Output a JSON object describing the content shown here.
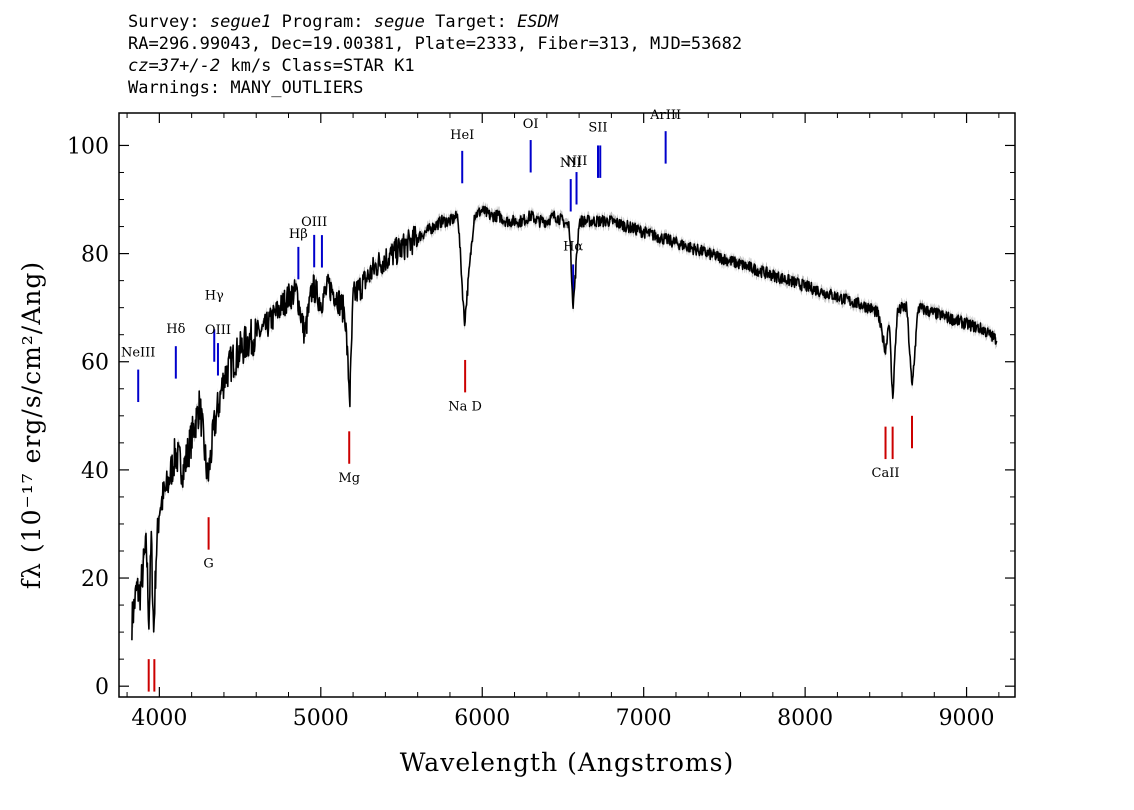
{
  "header": {
    "survey_label": "Survey:",
    "survey": "segue1",
    "program_label": "Program:",
    "program": "segue",
    "target_label": "Target:",
    "target": "ESDM",
    "coords": "RA=296.99043, Dec=19.00381, Plate=2333, Fiber=313, MJD=53682",
    "cz": "cz=37+/-2",
    "cz_unit_class": "km/s Class=STAR K1",
    "warnings": "Warnings: MANY_OUTLIERS"
  },
  "colors": {
    "spectrum": "#000000",
    "error_band": "#bbbbbb",
    "emission": "#0000cc",
    "absorption": "#cc0000"
  },
  "chart_data": {
    "type": "line",
    "xlabel": "Wavelength (Angstroms)",
    "ylabel": "fλ (10⁻¹⁷ erg/s/cm²/Ang)",
    "xlim": [
      3750,
      9300
    ],
    "ylim": [
      -2,
      106
    ],
    "xticks": [
      4000,
      5000,
      6000,
      7000,
      8000,
      9000
    ],
    "yticks": [
      0,
      20,
      40,
      60,
      80,
      100
    ],
    "grid": false,
    "series": [
      {
        "x": [
          3830,
          3860,
          3880,
          3900,
          3920,
          3935,
          3950,
          3965,
          3980,
          4000,
          4050,
          4100,
          4150,
          4200,
          4250,
          4300,
          4340,
          4400,
          4450,
          4500,
          4550,
          4600,
          4650,
          4700,
          4750,
          4800,
          4850,
          4900,
          4950,
          5000,
          5050,
          5100,
          5150,
          5180,
          5200,
          5250,
          5300,
          5350,
          5400,
          5450,
          5500,
          5550,
          5600,
          5650,
          5700,
          5750,
          5800,
          5850,
          5890,
          5950,
          6000,
          6050,
          6100,
          6150,
          6200,
          6250,
          6300,
          6350,
          6400,
          6450,
          6500,
          6540,
          6563,
          6600,
          6650,
          6700,
          6750,
          6800,
          6900,
          7000,
          7100,
          7200,
          7300,
          7400,
          7500,
          7600,
          7700,
          7800,
          7900,
          8000,
          8100,
          8200,
          8300,
          8400,
          8450,
          8498,
          8520,
          8542,
          8570,
          8600,
          8630,
          8662,
          8700,
          8800,
          8900,
          9000,
          9100,
          9190
        ],
        "y": [
          12,
          18,
          17,
          22,
          26,
          12,
          27,
          10,
          24,
          33,
          37,
          43,
          40,
          46,
          52,
          38,
          48,
          57,
          60,
          62,
          64,
          65,
          66,
          68,
          70,
          72,
          73,
          65,
          74,
          71,
          74,
          72,
          69,
          53,
          72,
          74,
          76,
          78,
          79,
          80,
          81,
          82,
          83,
          84,
          85,
          86,
          86,
          87,
          67,
          87,
          88,
          87,
          87,
          86,
          86,
          86,
          87,
          86,
          86,
          87,
          86,
          85,
          70,
          86,
          86,
          86,
          86,
          86,
          85,
          84,
          83,
          82,
          81,
          80,
          79,
          78,
          77,
          76,
          75,
          74,
          73,
          72,
          71,
          70,
          69,
          62,
          68,
          53,
          69,
          70,
          70,
          55,
          70,
          69,
          68,
          67,
          66,
          64
        ]
      }
    ],
    "emission_lines": [
      {
        "label": "NeIII",
        "wavelength": 3869
      },
      {
        "label": "Hδ",
        "wavelength": 4102
      },
      {
        "label": "Hγ",
        "wavelength": 4340
      },
      {
        "label": "OIII",
        "wavelength": 4363
      },
      {
        "label": "Hβ",
        "wavelength": 4861
      },
      {
        "label": "OIII",
        "wavelength": 4959
      },
      {
        "label": "",
        "wavelength": 5007
      },
      {
        "label": "HeI",
        "wavelength": 5876
      },
      {
        "label": "OI",
        "wavelength": 6300
      },
      {
        "label": "NII",
        "wavelength": 6548
      },
      {
        "label": "Hα",
        "wavelength": 6563
      },
      {
        "label": "NII",
        "wavelength": 6584
      },
      {
        "label": "SII",
        "wavelength": 6717
      },
      {
        "label": "",
        "wavelength": 6731
      },
      {
        "label": "ArIII",
        "wavelength": 7136
      }
    ],
    "absorption_lines": [
      {
        "label": "",
        "wavelength": 3934
      },
      {
        "label": "",
        "wavelength": 3969
      },
      {
        "label": "G",
        "wavelength": 4305
      },
      {
        "label": "Mg",
        "wavelength": 5176
      },
      {
        "label": "Na D",
        "wavelength": 5894
      },
      {
        "label": "CaII",
        "wavelength": 8498
      },
      {
        "label": "",
        "wavelength": 8542
      },
      {
        "label": "",
        "wavelength": 8662
      }
    ]
  }
}
